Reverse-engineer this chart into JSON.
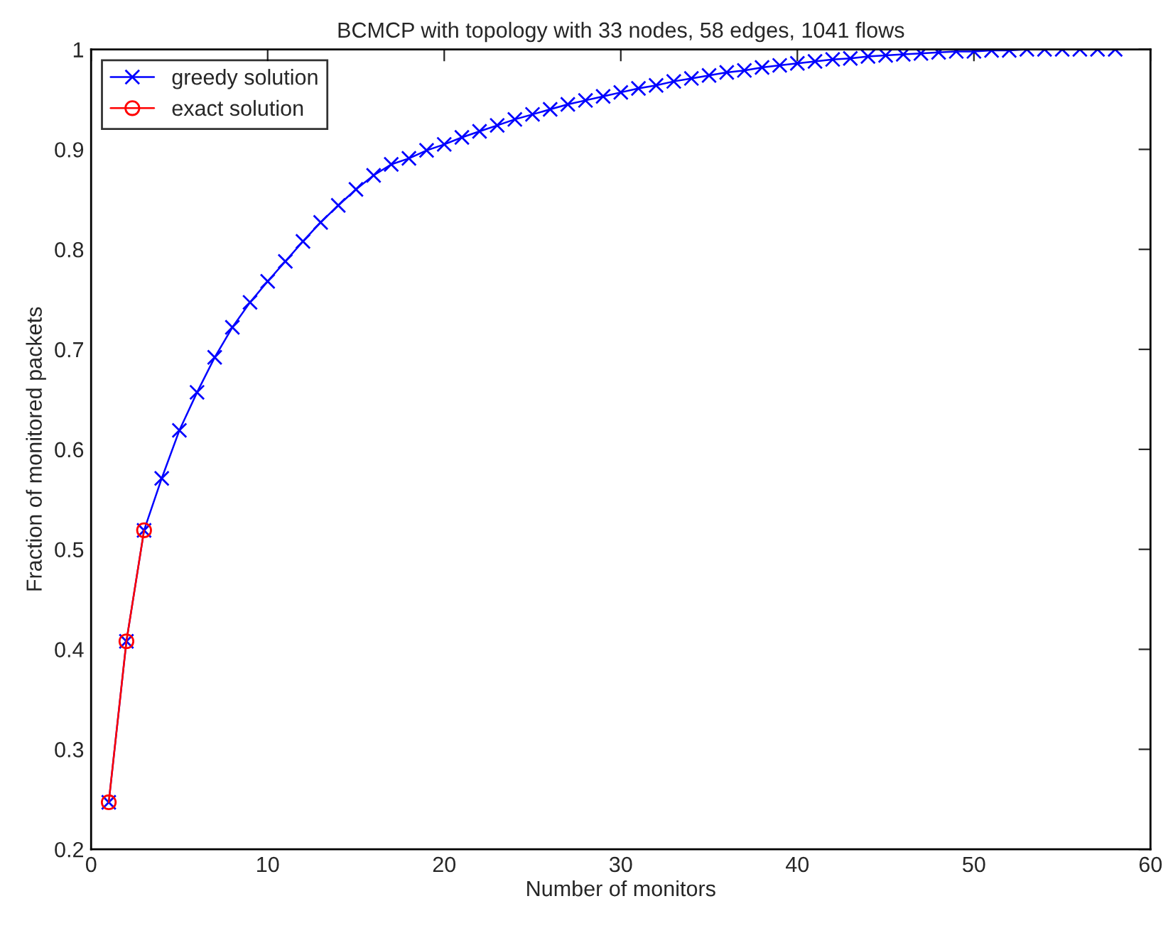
{
  "chart_data": {
    "type": "line",
    "title": "BCMCP with topology with 33 nodes, 58 edges, 1041 flows",
    "xlabel": "Number of monitors",
    "ylabel": "Fraction of monitored packets",
    "xlim": [
      0,
      60
    ],
    "xticks": [
      0,
      10,
      20,
      30,
      40,
      50,
      60
    ],
    "ylim": [
      0.2,
      1
    ],
    "yticks": [
      0.2,
      0.3,
      0.4,
      0.5,
      0.6,
      0.7,
      0.8,
      0.9,
      1
    ],
    "grid": false,
    "legend": "top left",
    "line_style": "solid",
    "series": [
      {
        "name": "greedy solution",
        "color": "#0000ff",
        "marker": "cross",
        "x": [
          1,
          2,
          3,
          4,
          5,
          6,
          7,
          8,
          9,
          10,
          11,
          12,
          13,
          14,
          15,
          16,
          17,
          18,
          19,
          20,
          21,
          22,
          23,
          24,
          25,
          26,
          27,
          28,
          29,
          30,
          31,
          32,
          33,
          34,
          35,
          36,
          37,
          38,
          39,
          40,
          41,
          42,
          43,
          44,
          45,
          46,
          47,
          48,
          49,
          50,
          51,
          52,
          53,
          54,
          55,
          56,
          57,
          58
        ],
        "values": [
          0.247,
          0.408,
          0.519,
          0.571,
          0.619,
          0.657,
          0.692,
          0.722,
          0.747,
          0.768,
          0.788,
          0.808,
          0.827,
          0.844,
          0.86,
          0.874,
          0.885,
          0.891,
          0.899,
          0.905,
          0.912,
          0.918,
          0.924,
          0.93,
          0.935,
          0.94,
          0.945,
          0.949,
          0.953,
          0.957,
          0.961,
          0.964,
          0.968,
          0.971,
          0.974,
          0.977,
          0.979,
          0.982,
          0.984,
          0.986,
          0.988,
          0.99,
          0.991,
          0.993,
          0.994,
          0.995,
          0.996,
          0.997,
          0.998,
          0.998,
          0.999,
          0.999,
          1.0,
          1.0,
          1.0,
          1.0,
          1.0,
          1.0
        ]
      },
      {
        "name": "exact solution",
        "color": "#ff0000",
        "marker": "circle",
        "x": [
          1,
          2,
          3
        ],
        "values": [
          0.247,
          0.408,
          0.519
        ]
      }
    ]
  }
}
